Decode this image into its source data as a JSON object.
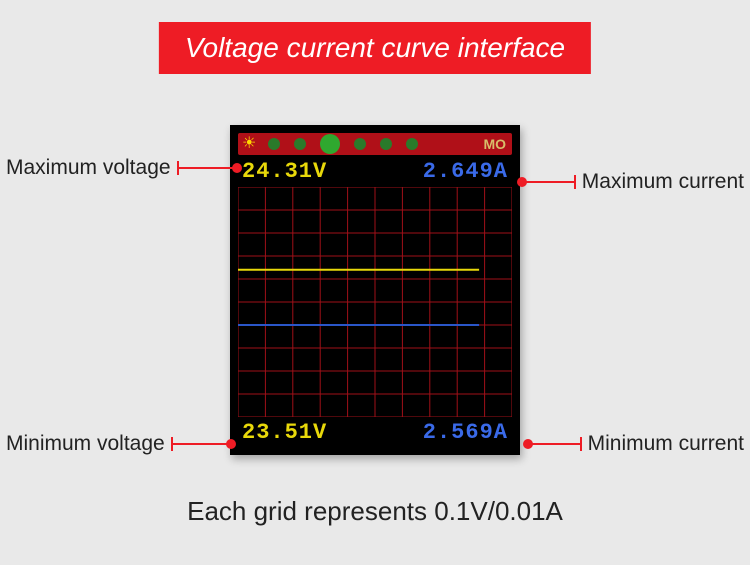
{
  "banner": {
    "title": "Voltage current curve interface"
  },
  "callouts": {
    "max_voltage": "Maximum voltage",
    "max_current": "Maximum current",
    "min_voltage": "Minimum voltage",
    "min_current": "Minimum current"
  },
  "readings": {
    "v_max": "24.31V",
    "a_max": "2.649A",
    "v_min": "23.51V",
    "a_min": "2.569A"
  },
  "status": {
    "mode": "MO"
  },
  "caption": "Each grid represents 0.1V/0.01A",
  "chart": {
    "type": "line",
    "grid": {
      "cols": 10,
      "rows": 10,
      "color": "#a01018",
      "background": "#000000"
    },
    "series": [
      {
        "name": "voltage",
        "color": "#e8d80a",
        "width": 2,
        "y_fraction": 0.36,
        "x_end_fraction": 0.88
      },
      {
        "name": "current",
        "color": "#2a56c8",
        "width": 2,
        "y_fraction": 0.6,
        "x_end_fraction": 0.88
      }
    ]
  },
  "colors": {
    "banner_bg": "#ee1c25",
    "page_bg": "#e9e9e9",
    "device_bg": "#000000",
    "voltage_text": "#e8d80a",
    "current_text": "#3a6ae8"
  }
}
